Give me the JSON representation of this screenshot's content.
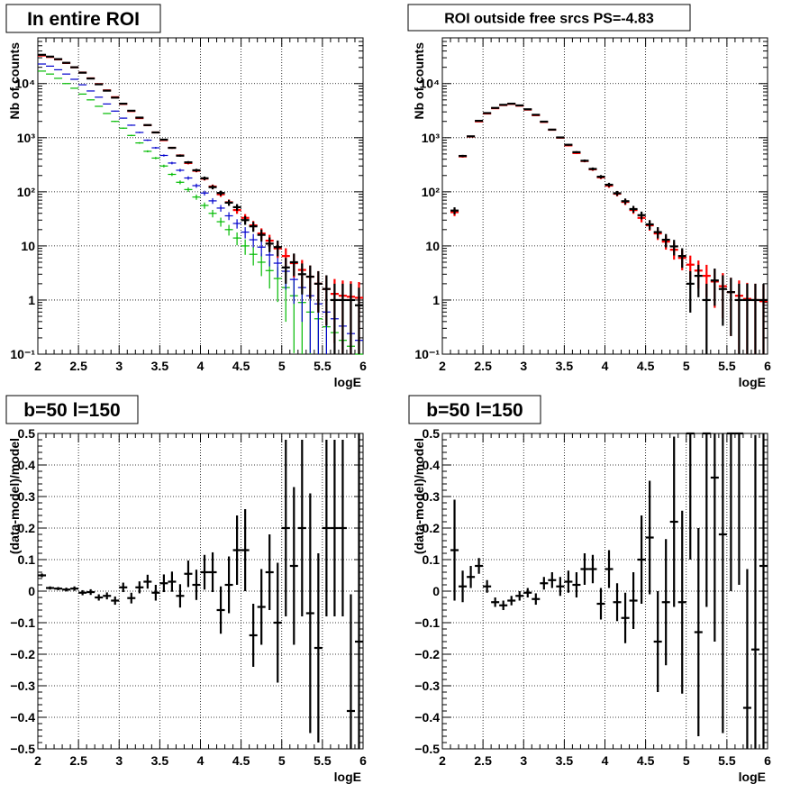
{
  "chart_data": [
    {
      "type": "scatter",
      "title": "In entire ROI",
      "xlabel": "logE",
      "ylabel": "Nb of counts",
      "xlim": [
        2,
        6
      ],
      "ylim": [
        0.1,
        70000
      ],
      "yscale": "log",
      "grid": true,
      "x_ticks": [
        "2",
        "2.5",
        "3",
        "3.5",
        "4",
        "4.5",
        "5",
        "5.5",
        "6"
      ],
      "y_ticks": [
        "10⁻¹",
        "1",
        "10",
        "10²",
        "10³",
        "10⁴"
      ],
      "series": [
        {
          "color": "#00bb00",
          "x": [
            2.05,
            2.15,
            2.25,
            2.35,
            2.45,
            2.55,
            2.65,
            2.75,
            2.85,
            2.95,
            3.05,
            3.15,
            3.25,
            3.35,
            3.45,
            3.55,
            3.65,
            3.75,
            3.85,
            3.95,
            4.05,
            4.15,
            4.25,
            4.35,
            4.45,
            4.55,
            4.65,
            4.75,
            4.85,
            4.95,
            5.05,
            5.15,
            5.25,
            5.35,
            5.45,
            5.55,
            5.65,
            5.75,
            5.85,
            5.95
          ],
          "y": [
            17000,
            15000,
            12500,
            10000,
            8200,
            6400,
            5000,
            3800,
            2800,
            2000,
            1500,
            1100,
            800,
            560,
            420,
            300,
            210,
            150,
            110,
            80,
            56,
            40,
            28,
            20,
            14,
            10,
            7,
            5,
            3.5,
            2.5,
            1.7,
            1.2,
            0.9,
            0.6,
            0.45,
            0.32,
            0.25,
            0.18,
            0.14,
            0.1
          ]
        },
        {
          "color": "#0000cc",
          "x": [
            2.05,
            2.15,
            2.25,
            2.35,
            2.45,
            2.55,
            2.65,
            2.75,
            2.85,
            2.95,
            3.05,
            3.15,
            3.25,
            3.35,
            3.45,
            3.55,
            3.65,
            3.75,
            3.85,
            3.95,
            4.05,
            4.15,
            4.25,
            4.35,
            4.45,
            4.55,
            4.65,
            4.75,
            4.85,
            4.95,
            5.05,
            5.15,
            5.25,
            5.35,
            5.45,
            5.55,
            5.65,
            5.75,
            5.85,
            5.95
          ],
          "y": [
            23000,
            21000,
            18000,
            15000,
            12000,
            9500,
            7300,
            5600,
            4200,
            3100,
            2300,
            1700,
            1250,
            900,
            650,
            470,
            340,
            250,
            180,
            130,
            95,
            68,
            50,
            36,
            26,
            18,
            13,
            9.5,
            6.8,
            4.8,
            3.4,
            2.4,
            1.7,
            1.2,
            0.85,
            0.6,
            0.45,
            0.33,
            0.24,
            0.18
          ]
        },
        {
          "color": "#ff0000",
          "x": [
            2.05,
            2.15,
            2.25,
            2.35,
            2.45,
            2.55,
            2.65,
            2.75,
            2.85,
            2.95,
            3.05,
            3.15,
            3.25,
            3.35,
            3.45,
            3.55,
            3.65,
            3.75,
            3.85,
            3.95,
            4.05,
            4.15,
            4.25,
            4.35,
            4.45,
            4.55,
            4.65,
            4.75,
            4.85,
            4.95,
            5.05,
            5.15,
            5.25,
            5.35,
            5.45,
            5.55,
            5.65,
            5.75,
            5.85,
            5.95
          ],
          "y": [
            33000,
            31000,
            28000,
            24000,
            20000,
            16000,
            12500,
            9800,
            7500,
            5600,
            4200,
            3100,
            2300,
            1700,
            1250,
            900,
            650,
            470,
            340,
            245,
            175,
            125,
            90,
            64,
            46,
            33,
            24,
            17,
            12.5,
            9,
            6.5,
            4.8,
            3.6,
            2.7,
            2.0,
            1.6,
            1.3,
            1.2,
            1.15,
            1.1
          ]
        },
        {
          "color": "#000000",
          "x": [
            2.05,
            2.15,
            2.25,
            2.35,
            2.45,
            2.55,
            2.65,
            2.75,
            2.85,
            2.95,
            3.05,
            3.15,
            3.25,
            3.35,
            3.45,
            3.55,
            3.65,
            3.75,
            3.85,
            3.95,
            4.05,
            4.15,
            4.25,
            4.35,
            4.45,
            4.55,
            4.65,
            4.75,
            4.85,
            4.95,
            5.05,
            5.15,
            5.25,
            5.35,
            5.45,
            5.55,
            5.65,
            5.75,
            5.85,
            5.95
          ],
          "y": [
            34000,
            31500,
            28300,
            24200,
            20000,
            15900,
            12400,
            9700,
            7400,
            5500,
            4250,
            3150,
            2350,
            1710,
            1250,
            920,
            650,
            465,
            350,
            250,
            178,
            122,
            95,
            63,
            52,
            30,
            23,
            16,
            11,
            9.5,
            4,
            5,
            3,
            2.7,
            2.0,
            1.6,
            1,
            1,
            1,
            0.8
          ]
        }
      ]
    },
    {
      "type": "scatter",
      "title": "ROI outside free srcs PS=-4.83",
      "xlabel": "logE",
      "ylabel": "Nb of counts",
      "xlim": [
        2,
        6
      ],
      "ylim": [
        0.1,
        70000
      ],
      "yscale": "log",
      "grid": true,
      "x_ticks": [
        "2",
        "2.5",
        "3",
        "3.5",
        "4",
        "4.5",
        "5",
        "5.5",
        "6"
      ],
      "y_ticks": [
        "10⁻¹",
        "1",
        "10",
        "10²",
        "10³",
        "10⁴"
      ],
      "series": [
        {
          "color": "#ff0000",
          "x": [
            2.15,
            2.25,
            2.35,
            2.45,
            2.55,
            2.65,
            2.75,
            2.85,
            2.95,
            3.05,
            3.15,
            3.25,
            3.35,
            3.45,
            3.55,
            3.65,
            3.75,
            3.85,
            3.95,
            4.05,
            4.15,
            4.25,
            4.35,
            4.45,
            4.55,
            4.65,
            4.75,
            4.85,
            4.95,
            5.05,
            5.15,
            5.25,
            5.35,
            5.45,
            5.55,
            5.65,
            5.75,
            5.85,
            5.95
          ],
          "y": [
            42,
            450,
            1050,
            2000,
            2800,
            3500,
            4000,
            4200,
            3900,
            3300,
            2600,
            1950,
            1400,
            1000,
            720,
            520,
            370,
            260,
            185,
            130,
            92,
            65,
            46,
            33,
            24,
            17,
            12,
            8.5,
            6,
            4.5,
            3.5,
            2.8,
            2.2,
            1.8,
            1.4,
            1.2,
            1.05,
            1.0,
            0.95
          ]
        },
        {
          "color": "#000000",
          "x": [
            2.15,
            2.25,
            2.35,
            2.45,
            2.55,
            2.65,
            2.75,
            2.85,
            2.95,
            3.05,
            3.15,
            3.25,
            3.35,
            3.45,
            3.55,
            3.65,
            3.75,
            3.85,
            3.95,
            4.05,
            4.15,
            4.25,
            4.35,
            4.45,
            4.55,
            4.65,
            4.75,
            4.85,
            4.95,
            5.05,
            5.15,
            5.25,
            5.35,
            5.45,
            5.55,
            5.65,
            5.75,
            5.85,
            5.95
          ],
          "y": [
            45,
            460,
            1060,
            2050,
            2850,
            3550,
            4050,
            4250,
            3950,
            3350,
            2650,
            1980,
            1410,
            1010,
            740,
            540,
            375,
            265,
            190,
            135,
            94,
            67,
            48,
            37,
            25,
            18,
            13,
            9.8,
            6.5,
            2,
            2.8,
            1,
            2.3,
            1.6,
            1.4,
            1,
            1,
            1,
            1
          ]
        }
      ]
    },
    {
      "type": "scatter",
      "title": "b=50 l=150",
      "xlabel": "logE",
      "ylabel": "(data-model)/model",
      "xlim": [
        2,
        6
      ],
      "ylim": [
        -0.5,
        0.5
      ],
      "grid": true,
      "x_ticks": [
        "2",
        "2.5",
        "3",
        "3.5",
        "4",
        "4.5",
        "5",
        "5.5",
        "6"
      ],
      "y_ticks": [
        "−0.5",
        "−0.4",
        "−0.3",
        "−0.2",
        "−0.1",
        "0",
        "0.1",
        "0.2",
        "0.3",
        "0.4",
        "0.5"
      ],
      "series": [
        {
          "color": "#000000",
          "x": [
            2.05,
            2.15,
            2.25,
            2.35,
            2.45,
            2.55,
            2.65,
            2.75,
            2.85,
            2.95,
            3.05,
            3.15,
            3.25,
            3.35,
            3.45,
            3.55,
            3.65,
            3.75,
            3.85,
            3.95,
            4.05,
            4.15,
            4.25,
            4.35,
            4.45,
            4.55,
            4.65,
            4.75,
            4.85,
            4.95,
            5.05,
            5.15,
            5.25,
            5.35,
            5.45,
            5.55,
            5.65,
            5.75,
            5.85,
            5.95
          ],
          "y": [
            0.05,
            0.01,
            0.008,
            0.005,
            0.008,
            -0.005,
            -0.003,
            -0.02,
            -0.015,
            -0.03,
            0.012,
            -0.022,
            0.012,
            0.03,
            -0.005,
            0.025,
            0.03,
            -0.015,
            0.055,
            0.02,
            0.06,
            0.06,
            -0.06,
            0.02,
            0.13,
            0.13,
            -0.14,
            -0.05,
            0.06,
            -0.1,
            0.2,
            0.08,
            0.2,
            -0.07,
            -0.18,
            0.2,
            0.2,
            0.2,
            -0.38,
            -0.16
          ],
          "yerr": [
            0.006,
            0.005,
            0.005,
            0.006,
            0.007,
            0.008,
            0.009,
            0.01,
            0.011,
            0.013,
            0.015,
            0.017,
            0.019,
            0.022,
            0.025,
            0.028,
            0.032,
            0.037,
            0.042,
            0.048,
            0.055,
            0.063,
            0.075,
            0.09,
            0.11,
            0.13,
            0.1,
            0.12,
            0.12,
            0.19,
            0.28,
            0.25,
            0.28,
            0.38,
            0.3,
            0.28,
            0.28,
            0.28,
            0.37,
            0.66
          ]
        }
      ]
    },
    {
      "type": "scatter",
      "title": "b=50 l=150",
      "xlabel": "logE",
      "ylabel": "(data-model)/model",
      "xlim": [
        2,
        6
      ],
      "ylim": [
        -0.5,
        0.5
      ],
      "grid": true,
      "x_ticks": [
        "2",
        "2.5",
        "3",
        "3.5",
        "4",
        "4.5",
        "5",
        "5.5",
        "6"
      ],
      "y_ticks": [
        "−0.5",
        "−0.4",
        "−0.3",
        "−0.2",
        "−0.1",
        "0",
        "0.1",
        "0.2",
        "0.3",
        "0.4",
        "0.5"
      ],
      "series": [
        {
          "color": "#000000",
          "x": [
            2.15,
            2.25,
            2.35,
            2.45,
            2.55,
            2.65,
            2.75,
            2.85,
            2.95,
            3.05,
            3.15,
            3.25,
            3.35,
            3.45,
            3.55,
            3.65,
            3.75,
            3.85,
            3.95,
            4.05,
            4.15,
            4.25,
            4.35,
            4.45,
            4.55,
            4.65,
            4.75,
            4.85,
            4.95,
            5.05,
            5.15,
            5.25,
            5.35,
            5.45,
            5.55,
            5.65,
            5.75,
            5.85,
            5.95
          ],
          "y": [
            0.13,
            0.015,
            0.045,
            0.08,
            0.015,
            -0.035,
            -0.045,
            -0.03,
            -0.015,
            -0.005,
            -0.025,
            0.025,
            0.035,
            0.015,
            0.03,
            0.02,
            0.07,
            0.07,
            -0.04,
            0.07,
            -0.035,
            -0.085,
            -0.03,
            0.1,
            0.17,
            -0.16,
            -0.035,
            0.22,
            -0.035,
            0.5,
            -0.13,
            0.5,
            0.36,
            0.18,
            0.5,
            0.5,
            -0.37,
            -0.185,
            0.08
          ],
          "yerr": [
            0.16,
            0.05,
            0.035,
            0.025,
            0.02,
            0.015,
            0.015,
            0.015,
            0.015,
            0.015,
            0.018,
            0.02,
            0.025,
            0.03,
            0.035,
            0.04,
            0.05,
            0.045,
            0.05,
            0.06,
            0.06,
            0.08,
            0.09,
            0.14,
            0.18,
            0.16,
            0.2,
            0.27,
            0.29,
            0.4,
            0.33,
            0.55,
            0.52,
            0.63,
            0.5,
            0.48,
            0.44,
            0.68,
            0.9
          ]
        }
      ]
    }
  ]
}
